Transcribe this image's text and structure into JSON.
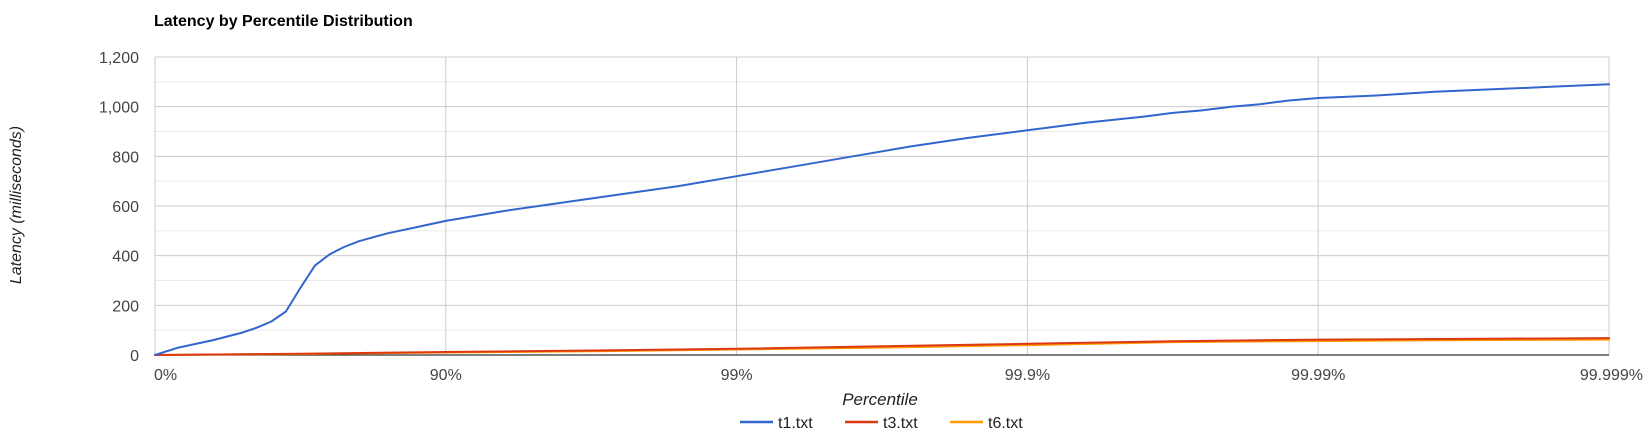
{
  "chart_data": {
    "type": "line",
    "title": "Latency by Percentile Distribution",
    "xlabel": "Percentile",
    "ylabel": "Latency (milliseconds)",
    "x_scale": "log-reciprocal (1/(1-percentile))",
    "x_ticks": [
      "0%",
      "90%",
      "99%",
      "99.9%",
      "99.99%",
      "99.999%"
    ],
    "y_ticks": [
      "0",
      "200",
      "400",
      "600",
      "800",
      "1,000",
      "1,200"
    ],
    "ylim": [
      0,
      1200
    ],
    "grid": true,
    "legend_position": "bottom",
    "series": [
      {
        "name": "t1.txt",
        "color": "#3366cc",
        "points": [
          [
            0,
            0
          ],
          [
            0.08,
            30
          ],
          [
            0.2,
            60
          ],
          [
            0.3,
            90
          ],
          [
            0.35,
            110
          ],
          [
            0.4,
            135
          ],
          [
            0.45,
            175
          ],
          [
            0.5,
            270
          ],
          [
            0.55,
            360
          ],
          [
            0.6,
            405
          ],
          [
            0.65,
            435
          ],
          [
            0.7,
            458
          ],
          [
            0.8,
            490
          ],
          [
            0.9,
            515
          ],
          [
            1.0,
            540
          ],
          [
            1.2,
            580
          ],
          [
            1.5,
            630
          ],
          [
            1.8,
            680
          ],
          [
            2.0,
            720
          ],
          [
            2.2,
            760
          ],
          [
            2.4,
            800
          ],
          [
            2.6,
            840
          ],
          [
            2.8,
            875
          ],
          [
            3.0,
            905
          ],
          [
            3.2,
            935
          ],
          [
            3.4,
            960
          ],
          [
            3.5,
            975
          ],
          [
            3.6,
            985
          ],
          [
            3.7,
            1000
          ],
          [
            3.8,
            1010
          ],
          [
            3.9,
            1025
          ],
          [
            4.0,
            1035
          ],
          [
            4.2,
            1045
          ],
          [
            4.4,
            1060
          ],
          [
            4.6,
            1070
          ],
          [
            4.8,
            1080
          ],
          [
            5.0,
            1090
          ]
        ]
      },
      {
        "name": "t3.txt",
        "color": "#dc3912",
        "points": [
          [
            0,
            0
          ],
          [
            0.5,
            5
          ],
          [
            1.0,
            12
          ],
          [
            1.5,
            18
          ],
          [
            2.0,
            25
          ],
          [
            2.5,
            35
          ],
          [
            3.0,
            45
          ],
          [
            3.5,
            55
          ],
          [
            4.0,
            62
          ],
          [
            4.5,
            65
          ],
          [
            5.0,
            68
          ]
        ]
      },
      {
        "name": "t6.txt",
        "color": "#ff9900",
        "points": [
          [
            0,
            0
          ],
          [
            0.5,
            4
          ],
          [
            1.0,
            10
          ],
          [
            1.5,
            15
          ],
          [
            2.0,
            22
          ],
          [
            2.5,
            30
          ],
          [
            3.0,
            40
          ],
          [
            3.5,
            52
          ],
          [
            4.0,
            56
          ],
          [
            4.5,
            60
          ],
          [
            5.0,
            62
          ]
        ]
      }
    ]
  }
}
